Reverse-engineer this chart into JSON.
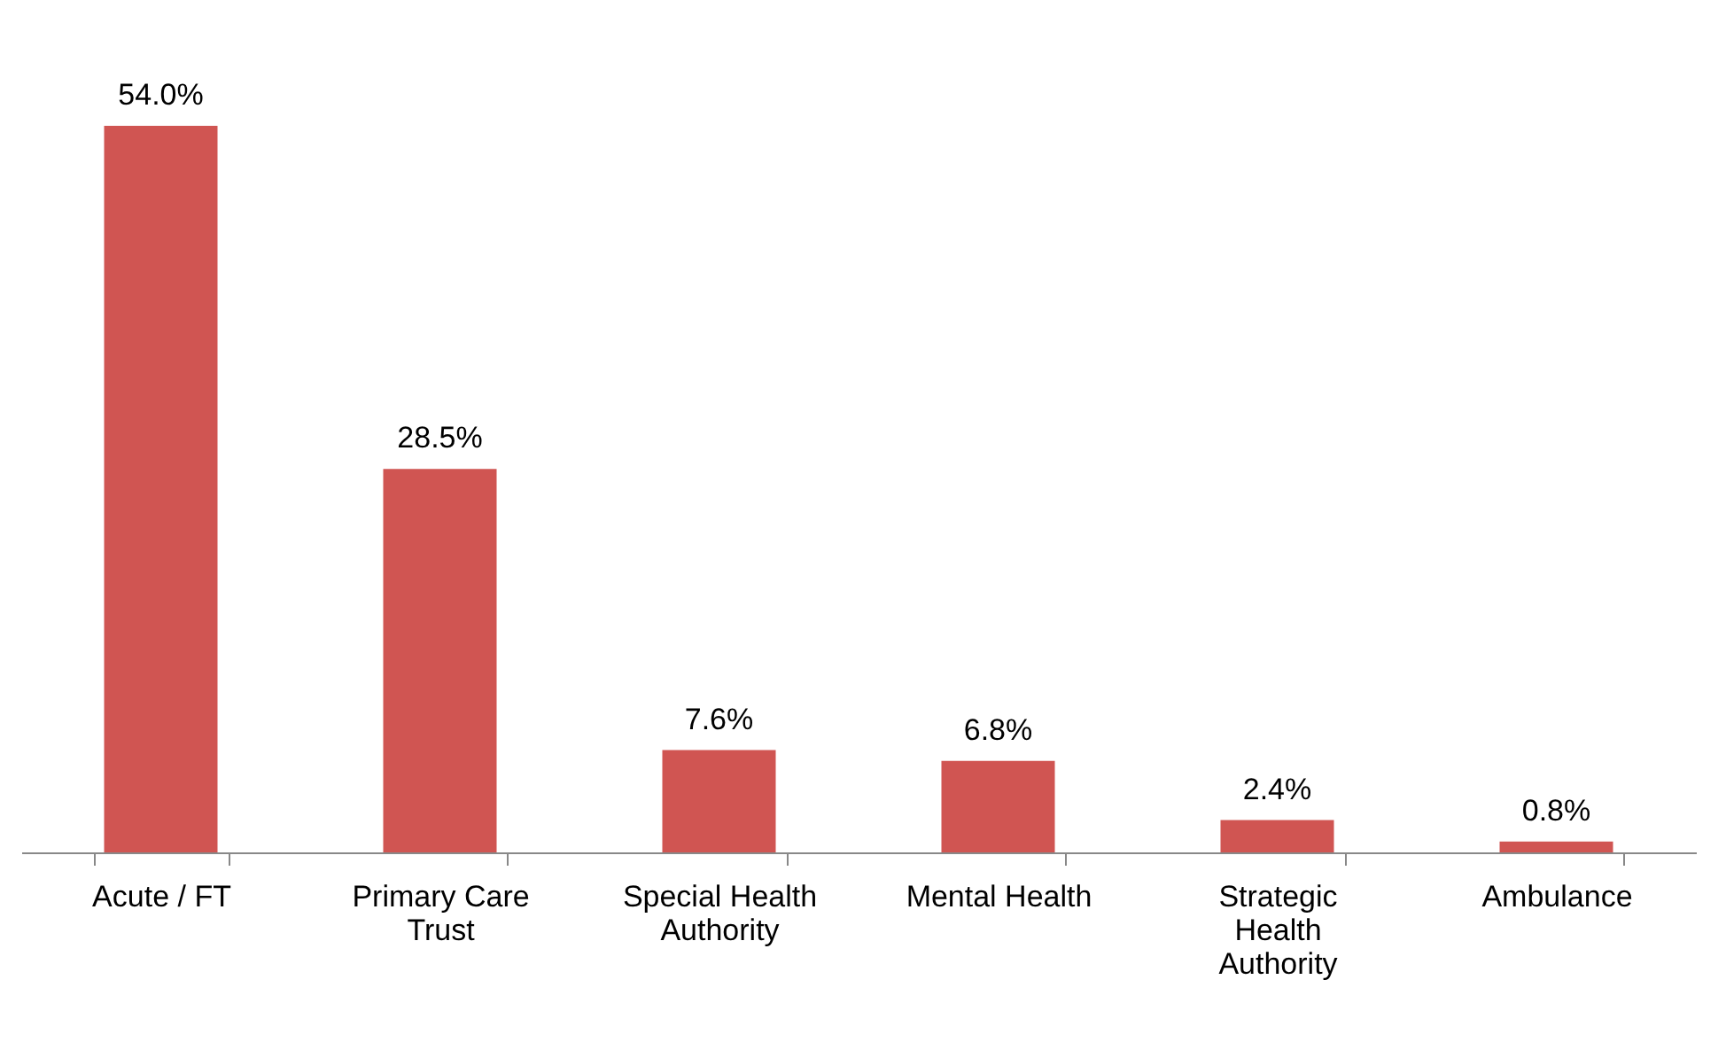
{
  "chart_data": {
    "type": "bar",
    "categories": [
      "Acute / FT",
      "Primary Care Trust",
      "Special Health Authority",
      "Mental Health",
      "Strategic Health Authority",
      "Ambulance"
    ],
    "series": [
      {
        "color": "#d05552",
        "values": [
          54.0,
          28.5,
          7.6,
          6.8,
          2.4,
          0.8
        ],
        "value_labels": [
          "54.0%",
          "28.5%",
          "7.6%",
          "6.8%",
          "2.4%",
          "0.8%"
        ]
      }
    ],
    "grid": false,
    "tick_labels": "x"
  }
}
